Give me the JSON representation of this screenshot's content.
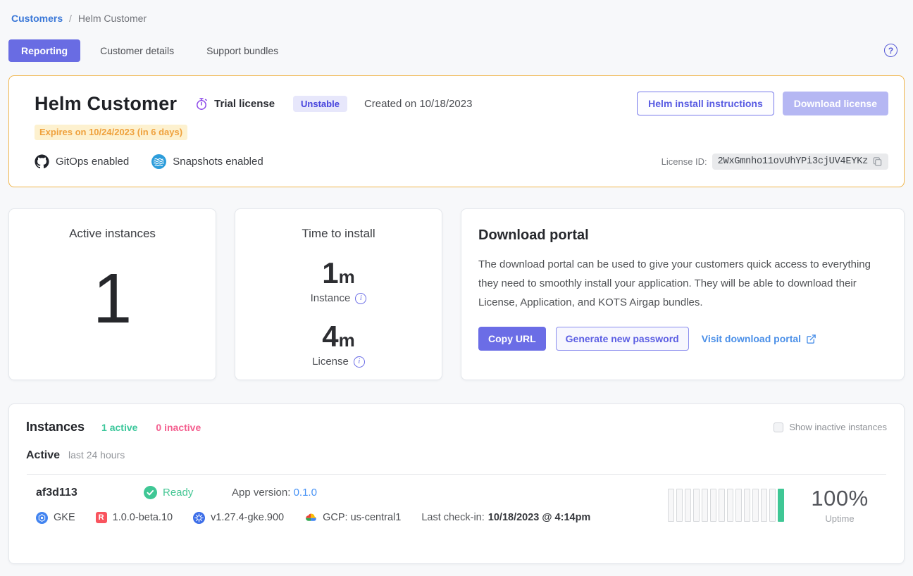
{
  "breadcrumb": {
    "parent": "Customers",
    "separator": "/",
    "current": "Helm Customer"
  },
  "tabs": [
    {
      "label": "Reporting",
      "active": true
    },
    {
      "label": "Customer details",
      "active": false
    },
    {
      "label": "Support bundles",
      "active": false
    }
  ],
  "help_icon": "?",
  "license_card": {
    "title": "Helm Customer",
    "license_type": "Trial license",
    "channel_badge": "Unstable",
    "created": "Created on 10/18/2023",
    "expires": "Expires on 10/24/2023 (in 6 days)",
    "helm_install_label": "Helm install instructions",
    "download_license_label": "Download license",
    "features": [
      {
        "icon": "github-icon",
        "label": "GitOps enabled"
      },
      {
        "icon": "snapshots-icon",
        "label": "Snapshots enabled"
      }
    ],
    "license_id_label": "License ID:",
    "license_id": "2WxGmnho11ovUhYPi3cjUV4EYKz"
  },
  "metrics": {
    "active_instances": {
      "title": "Active instances",
      "value": "1"
    },
    "time_to_install": {
      "title": "Time to install",
      "items": [
        {
          "value": "1",
          "unit": "m",
          "label": "Instance"
        },
        {
          "value": "4",
          "unit": "m",
          "label": "License"
        }
      ]
    }
  },
  "download_portal": {
    "title": "Download portal",
    "description": "The download portal can be used to give your customers quick access to everything they need to smoothly install your application. They will be able to download their License, Application, and KOTS Airgap bundles.",
    "copy_url_label": "Copy URL",
    "generate_password_label": "Generate new password",
    "visit_portal_label": "Visit download portal"
  },
  "instances": {
    "title": "Instances",
    "active_count": "1 active",
    "inactive_count": "0 inactive",
    "show_inactive_label": "Show inactive instances",
    "section_label": "Active",
    "section_range": "last 24 hours",
    "rows": [
      {
        "id": "af3d113",
        "status": "Ready",
        "app_version_label": "App version:",
        "app_version": "0.1.0",
        "distribution": "GKE",
        "kots_version": "1.0.0-beta.10",
        "k8s_version": "v1.27.4-gke.900",
        "cloud": "GCP: us-central1",
        "last_checkin_label": "Last check-in:",
        "last_checkin": "10/18/2023 @ 4:14pm",
        "uptime_value": "100%",
        "uptime_label": "Uptime",
        "uptime_bars_total": 14,
        "uptime_bars_filled": 1
      }
    ]
  },
  "colors": {
    "accent_purple": "#696ce3",
    "link_blue": "#4591f5",
    "warning_border": "#f0b54b",
    "warning_text": "#efa13d",
    "success_green": "#3fc795",
    "danger_pink": "#f45f8f",
    "badge_bg": "#e7e7fb",
    "badge_text": "#4744dd"
  }
}
